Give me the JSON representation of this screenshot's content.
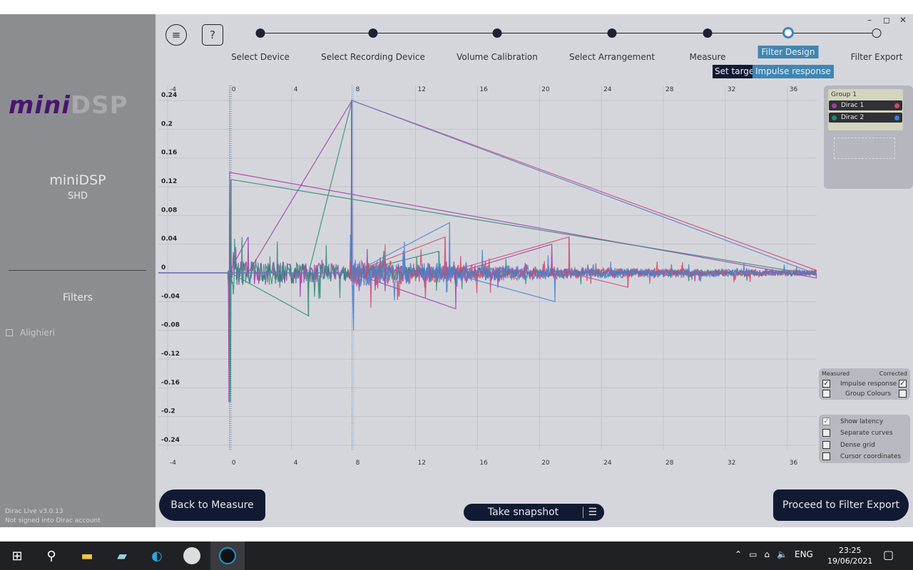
{
  "window": {
    "controls": [
      "–",
      "◻",
      "✕"
    ]
  },
  "sidebar": {
    "logo_left": "mini",
    "logo_right": "DSP",
    "device": "miniDSP",
    "device_sub": "SHD",
    "filters_heading": "Filters",
    "filters": [
      {
        "label": "Alighieri",
        "checked": false
      }
    ],
    "version": "Dirac Live v3.0.13",
    "account": "Not signed into Dirac account"
  },
  "header": {
    "menu_icon": "hamburger-icon",
    "help_label": "?",
    "steps": [
      "Select Device",
      "Select Recording Device",
      "Volume Calibration",
      "Select Arrangement",
      "Measure",
      "Filter Design",
      "Filter Export"
    ],
    "active_step": "Filter Design",
    "subtabs": [
      "Set target",
      "Impulse response"
    ],
    "active_subtab": "Impulse response"
  },
  "chart_data": {
    "type": "line",
    "title": "",
    "xlabel": "",
    "ylabel": "",
    "xlim": [
      -4.6,
      37.9
    ],
    "ylim": [
      -0.26,
      0.26
    ],
    "x_ticks": [
      "-4",
      "0",
      "4",
      "8",
      "12",
      "16",
      "20",
      "24",
      "28",
      "32",
      "36"
    ],
    "y_ticks": [
      "0.24",
      "0.2",
      "0.16",
      "0.12",
      "0.08",
      "0.04",
      "0",
      "-0.04",
      "-0.08",
      "-0.12",
      "-0.16",
      "-0.2",
      "-0.24"
    ],
    "grid": true,
    "series": [
      {
        "name": "Dirac 1",
        "color": "#a23aa8",
        "peaks": [
          [
            0,
            0.14
          ],
          [
            -0.05,
            -0.18
          ],
          [
            1.2,
            0.05
          ],
          [
            7.9,
            0.24
          ],
          [
            14.6,
            -0.05
          ],
          [
            20.8,
            0.04
          ]
        ]
      },
      {
        "name": "Dirac 2",
        "color": "#2a8a78",
        "peaks": [
          [
            0.1,
            0.13
          ],
          [
            0.05,
            -0.18
          ],
          [
            5.1,
            -0.06
          ],
          [
            7.9,
            0.24
          ],
          [
            13.5,
            0.03
          ]
        ]
      },
      {
        "name": "Dirac 1 corrected",
        "color": "#d2486a",
        "peaks": [
          [
            7.9,
            0.24
          ],
          [
            13.9,
            0.05
          ],
          [
            21.9,
            0.05
          ],
          [
            25.7,
            -0.02
          ]
        ]
      },
      {
        "name": "Dirac 2 corrected",
        "color": "#4a7fd0",
        "peaks": [
          [
            7.9,
            0.24
          ],
          [
            8,
            -0.08
          ],
          [
            14.2,
            0.07
          ],
          [
            21,
            -0.04
          ]
        ]
      }
    ]
  },
  "groups": {
    "title": "Group 1",
    "items": [
      {
        "label": "Dirac 1",
        "left": "#a23aa8",
        "right": "#d2486a"
      },
      {
        "label": "Dirac 2",
        "left": "#1f8a72",
        "right": "#3d7fd6"
      }
    ]
  },
  "options": {
    "measured": "Measured",
    "corrected": "Corrected",
    "impulse": "Impulse response",
    "group_colours": "Group Colours",
    "show_latency": "Show latency",
    "separate": "Separate curves",
    "dense": "Dense grid",
    "cursor": "Cursor coordinates"
  },
  "footer": {
    "back": "Back to Measure",
    "snapshot": "Take snapshot",
    "proceed": "Proceed to Filter Export"
  },
  "taskbar": {
    "lang": "ENG",
    "time": "23:25",
    "date": "19/06/2021"
  }
}
